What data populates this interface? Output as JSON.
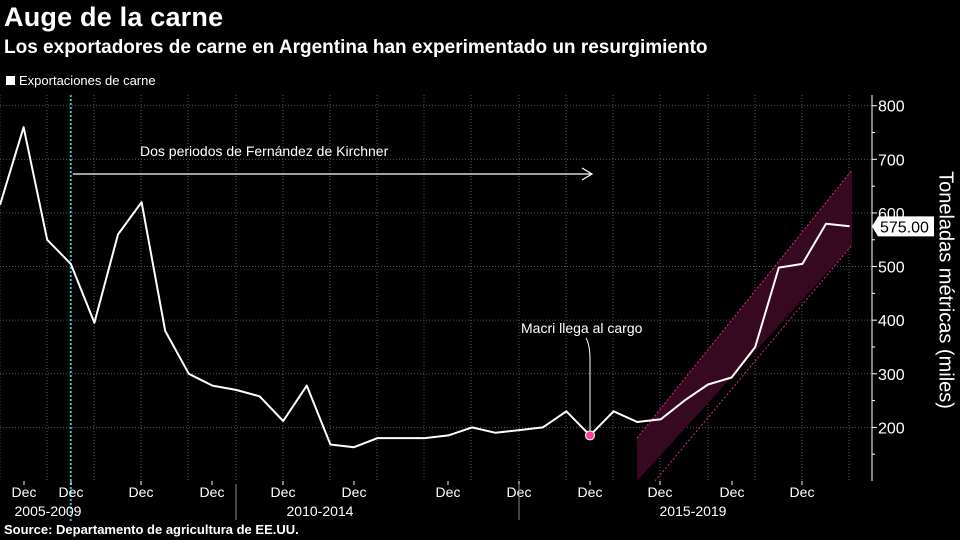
{
  "header": {
    "title": "Auge de la carne",
    "subtitle": "Los exportadores de carne en Argentina han experimentado un resurgimiento"
  },
  "legend": {
    "label": "Exportaciones de carne"
  },
  "source": "Source: Departamento de agricultura de EE.UU.",
  "annotations": {
    "kirchner": "Dos periodos de Fernández de Kirchner",
    "macri": "Macri llega al cargo"
  },
  "last_value_label": "575.00",
  "colors": {
    "background": "#000000",
    "line": "#ffffff",
    "marker": "#ff3fa0",
    "band_fill": "#3a0a22",
    "band_edge": "#d0307a",
    "divider": "#27c3c9",
    "grid": "#555555"
  },
  "chart_data": {
    "type": "line",
    "title": "Auge de la carne",
    "ylabel": "Toneladas métricas (miles)",
    "ylim": [
      100,
      820
    ],
    "yticks": [
      200,
      300,
      400,
      500,
      600,
      700,
      800
    ],
    "grid": true,
    "tick_labels_x": [
      "Dec",
      "Dec",
      "Dec",
      "Dec",
      "Dec",
      "Dec",
      "Dec",
      "Dec",
      "Dec",
      "Dec",
      "Dec",
      "Dec"
    ],
    "period_labels": [
      "2005-2009",
      "2010-2014",
      "2015-2019"
    ],
    "series": [
      {
        "name": "Exportaciones de carne",
        "values": [
          615,
          760,
          550,
          505,
          395,
          560,
          620,
          380,
          300,
          278,
          270,
          258,
          212,
          278,
          168,
          163,
          180,
          180,
          180,
          185,
          200,
          190,
          195,
          200,
          230,
          185,
          230,
          210,
          215,
          250,
          280,
          293,
          350,
          498,
          505,
          580,
          575
        ]
      }
    ],
    "events": [
      {
        "label": "Dos periodos de Fernández de Kirchner",
        "start_index": 3,
        "end_index": 25
      },
      {
        "label": "Macri llega al cargo",
        "index": 25,
        "value": 185
      }
    ]
  }
}
